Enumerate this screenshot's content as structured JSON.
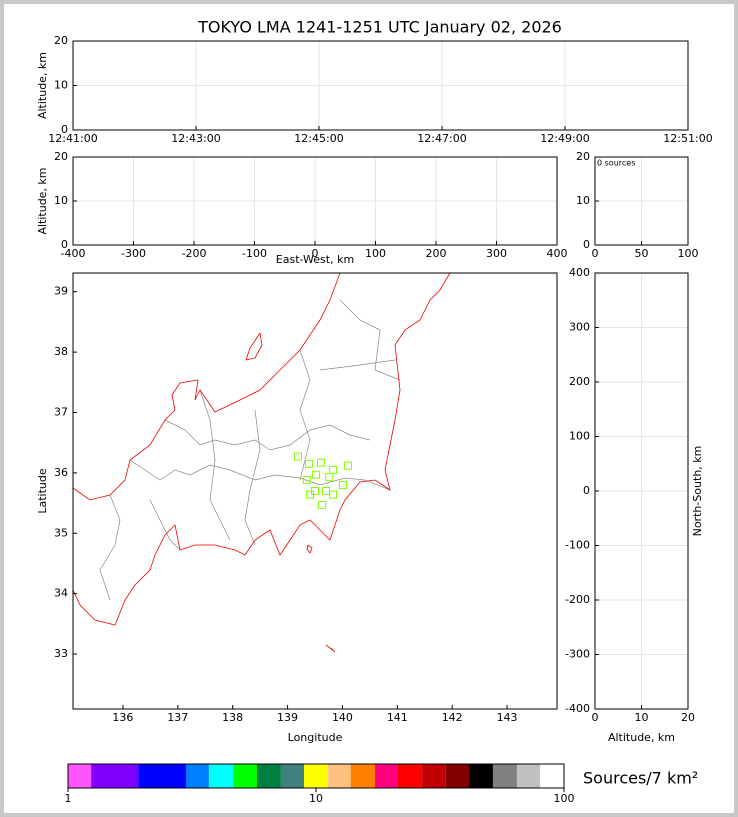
{
  "chart_data": [
    {
      "type": "scatter",
      "title": "TOKYO LMA 1241-1251 UTC January 02, 2026",
      "y_label": "Altitude, km",
      "xlim": [
        "12:41:00",
        "12:51:00"
      ],
      "xticks": [
        "12:41:00",
        "12:43:00",
        "12:45:00",
        "12:47:00",
        "12:49:00",
        "12:51:00"
      ],
      "ylim": [
        0,
        20
      ],
      "yticks": [
        0,
        10,
        20
      ],
      "grid": true
    },
    {
      "type": "scatter",
      "x_label": "East-West, km",
      "y_label": "Altitude, km",
      "xlim": [
        -400,
        400
      ],
      "xticks": [
        -400,
        -300,
        -200,
        -100,
        0,
        100,
        200,
        300,
        400
      ],
      "ylim": [
        0,
        20
      ],
      "yticks": [
        0,
        10,
        20
      ],
      "grid": true
    },
    {
      "type": "histogram",
      "annotation": "0 sources",
      "xlim": [
        0,
        100
      ],
      "xticks": [
        0,
        50,
        100
      ],
      "ylim": [
        0,
        20
      ],
      "yticks": [
        0,
        10,
        20
      ],
      "grid": true
    },
    {
      "type": "map",
      "x_label": "Longitude",
      "y_label": "Latitude",
      "xlim": [
        135.09,
        143.91
      ],
      "xticks": [
        136,
        137,
        138,
        139,
        140,
        141,
        142,
        143
      ],
      "ylim": [
        32.09,
        39.31
      ],
      "yticks": [
        33,
        34,
        35,
        36,
        37,
        38,
        39
      ],
      "grid": false,
      "series": [
        {
          "color": "#7fff00",
          "x": [
            139.19,
            139.39,
            139.61,
            139.83,
            140.1,
            139.52,
            139.76,
            139.35,
            140.01,
            139.5,
            139.7,
            139.41,
            139.83,
            139.63
          ],
          "values": [
            36.27,
            36.15,
            36.17,
            36.05,
            36.12,
            35.97,
            35.93,
            35.88,
            35.8,
            35.7,
            35.7,
            35.64,
            35.64,
            35.47
          ]
        }
      ]
    },
    {
      "type": "scatter",
      "x_label": "Altitude, km",
      "y_label": "North-South, km",
      "y_label_position": "right",
      "xlim": [
        0,
        20
      ],
      "xticks": [
        0,
        10,
        20
      ],
      "ylim": [
        -400,
        400
      ],
      "yticks": [
        -400,
        -300,
        -200,
        -100,
        0,
        100,
        200,
        300,
        400
      ],
      "grid": true
    },
    {
      "type": "colorbar",
      "label": "Sources/7 km²",
      "log_scale": true,
      "xlim": [
        1,
        100
      ],
      "xticks": [
        1,
        10,
        100
      ],
      "bins": [
        1,
        1.24,
        1.92,
        2.99,
        3.7,
        4.63,
        5.78,
        7.22,
        8.95,
        11.2,
        13.8,
        17.3,
        21.4,
        26.8,
        33.4,
        41.4,
        51.7,
        64.6,
        80.0,
        100
      ],
      "colors": [
        "#ff55ff",
        "#8000ff",
        "#0000ff",
        "#0080ff",
        "#00ffff",
        "#00ff00",
        "#008040",
        "#408080",
        "#ffff00",
        "#ffc080",
        "#ff8000",
        "#ff0080",
        "#ff0000",
        "#c00000",
        "#800000",
        "#000000",
        "#808080",
        "#c0c0c0",
        "#ffffff"
      ]
    }
  ]
}
